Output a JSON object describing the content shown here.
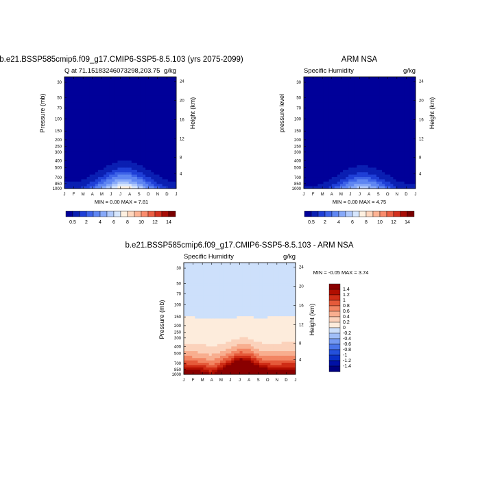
{
  "figure_title": "b.e21.BSSP585cmip6.f09_g17.CMIP6-SSP5-8.5.103 - ARM NSA",
  "colors": {
    "abs_levels": [
      "#000099",
      "#0a1fb2",
      "#1f3fd6",
      "#3d63e8",
      "#5f86f2",
      "#86a8f8",
      "#b0c9fb",
      "#d6e6fd",
      "#fff0e0",
      "#ffd6bd",
      "#fdb394",
      "#f98b6c",
      "#ea5e43",
      "#d3301f",
      "#a80d06",
      "#7a0000"
    ],
    "diff_levels": [
      "#000080",
      "#0010a6",
      "#0a30c8",
      "#2450dc",
      "#4a75ea",
      "#7499f2",
      "#a0bef7",
      "#cde0fb",
      "#fdecdc",
      "#fbd2bb",
      "#f8ae8f",
      "#f28563",
      "#e55a3a",
      "#cf2c15",
      "#b00e00",
      "#8a0000"
    ]
  },
  "chart_data": [
    {
      "type": "heatmap",
      "title": "b.e21.BSSP585cmip6.f09_g17.CMIP6-SSP5-8.5.103 (yrs 2075-2099)",
      "subtitle_left": "Q at 71.15183246073298,203.75",
      "subtitle_right": "g/kg",
      "xlabel": "",
      "ylabel": "Pressure (mb)",
      "ylabel_right": "Height (km)",
      "x_ticks": [
        "J",
        "F",
        "M",
        "A",
        "M",
        "J",
        "J",
        "A",
        "S",
        "O",
        "N",
        "D",
        "J"
      ],
      "y_ticks": [
        "30",
        "50",
        "70",
        "100",
        "150",
        "200",
        "250",
        "300",
        "400",
        "500",
        "700",
        "850",
        "1000"
      ],
      "y_range_mb": [
        1000,
        25
      ],
      "y_right_ticks": [
        "4",
        "8",
        "12",
        "16",
        "20",
        "24"
      ],
      "stats": "MIN =    0.00 MAX =    7.81",
      "min": 0.0,
      "max": 7.81,
      "peak_month": 7,
      "surface_profile_gkg": [
        0.9,
        0.9,
        1.2,
        1.9,
        3.3,
        5.4,
        7.8,
        7.2,
        5.0,
        3.0,
        1.8,
        1.1,
        0.9
      ],
      "colorbar_labels": [
        "0.5",
        "2",
        "4",
        "6",
        "8",
        "10",
        "12",
        "14"
      ]
    },
    {
      "type": "heatmap",
      "title": "ARM NSA",
      "subtitle_left": "Specific Humidity",
      "subtitle_right": "g/kg",
      "xlabel": "",
      "ylabel": "pressure level",
      "ylabel_right": "Height (km)",
      "x_ticks": [
        "J",
        "F",
        "M",
        "A",
        "M",
        "J",
        "J",
        "A",
        "S",
        "O",
        "N",
        "D",
        "J"
      ],
      "y_ticks": [
        "30",
        "50",
        "70",
        "100",
        "150",
        "200",
        "250",
        "300",
        "400",
        "500",
        "700",
        "850",
        "1000"
      ],
      "y_range_mb": [
        1000,
        25
      ],
      "y_right_ticks": [
        "4",
        "8",
        "12",
        "16",
        "20",
        "24"
      ],
      "stats": "MIN =    0.00 MAX =    4.75",
      "min": 0.0,
      "max": 4.75,
      "peak_month": 7,
      "surface_profile_gkg": [
        0.7,
        0.6,
        0.8,
        1.3,
        2.3,
        3.7,
        4.75,
        4.4,
        3.1,
        1.9,
        1.1,
        0.8,
        0.7
      ],
      "colorbar_labels": [
        "0.5",
        "2",
        "4",
        "6",
        "8",
        "10",
        "12",
        "14"
      ]
    },
    {
      "type": "heatmap",
      "title": "b.e21.BSSP585cmip6.f09_g17.CMIP6-SSP5-8.5.103 - ARM NSA",
      "subtitle_left": "Specific Humidity",
      "subtitle_right": "g/kg",
      "xlabel": "",
      "ylabel": "Pressure (mb)",
      "ylabel_right": "Height (km)",
      "x_ticks": [
        "J",
        "F",
        "M",
        "A",
        "M",
        "J",
        "J",
        "A",
        "S",
        "O",
        "N",
        "D",
        "J"
      ],
      "y_ticks": [
        "30",
        "50",
        "70",
        "100",
        "150",
        "200",
        "250",
        "300",
        "400",
        "500",
        "700",
        "850",
        "1000"
      ],
      "y_range_mb": [
        1000,
        25
      ],
      "y_right_ticks": [
        "4",
        "8",
        "12",
        "16",
        "20",
        "24"
      ],
      "stats": "MIN =   -0.05 MAX =    3.74",
      "min": -0.05,
      "max": 3.74,
      "zero_contour_mb": [
        150,
        152,
        155,
        158,
        160,
        158,
        150,
        145,
        160,
        152,
        147,
        145,
        145
      ],
      "surface_profile_gkg": [
        1.9,
        1.8,
        1.7,
        1.4,
        1.9,
        2.7,
        3.74,
        3.3,
        2.3,
        1.9,
        1.8,
        1.9,
        1.9
      ],
      "colorbar_labels": [
        "1.4",
        "1.2",
        "1",
        "0.8",
        "0.6",
        "0.4",
        "0.2",
        "0",
        "-0.2",
        "-0.4",
        "-0.6",
        "-0.8",
        "-1",
        "-1.2",
        "-1.4"
      ]
    }
  ]
}
